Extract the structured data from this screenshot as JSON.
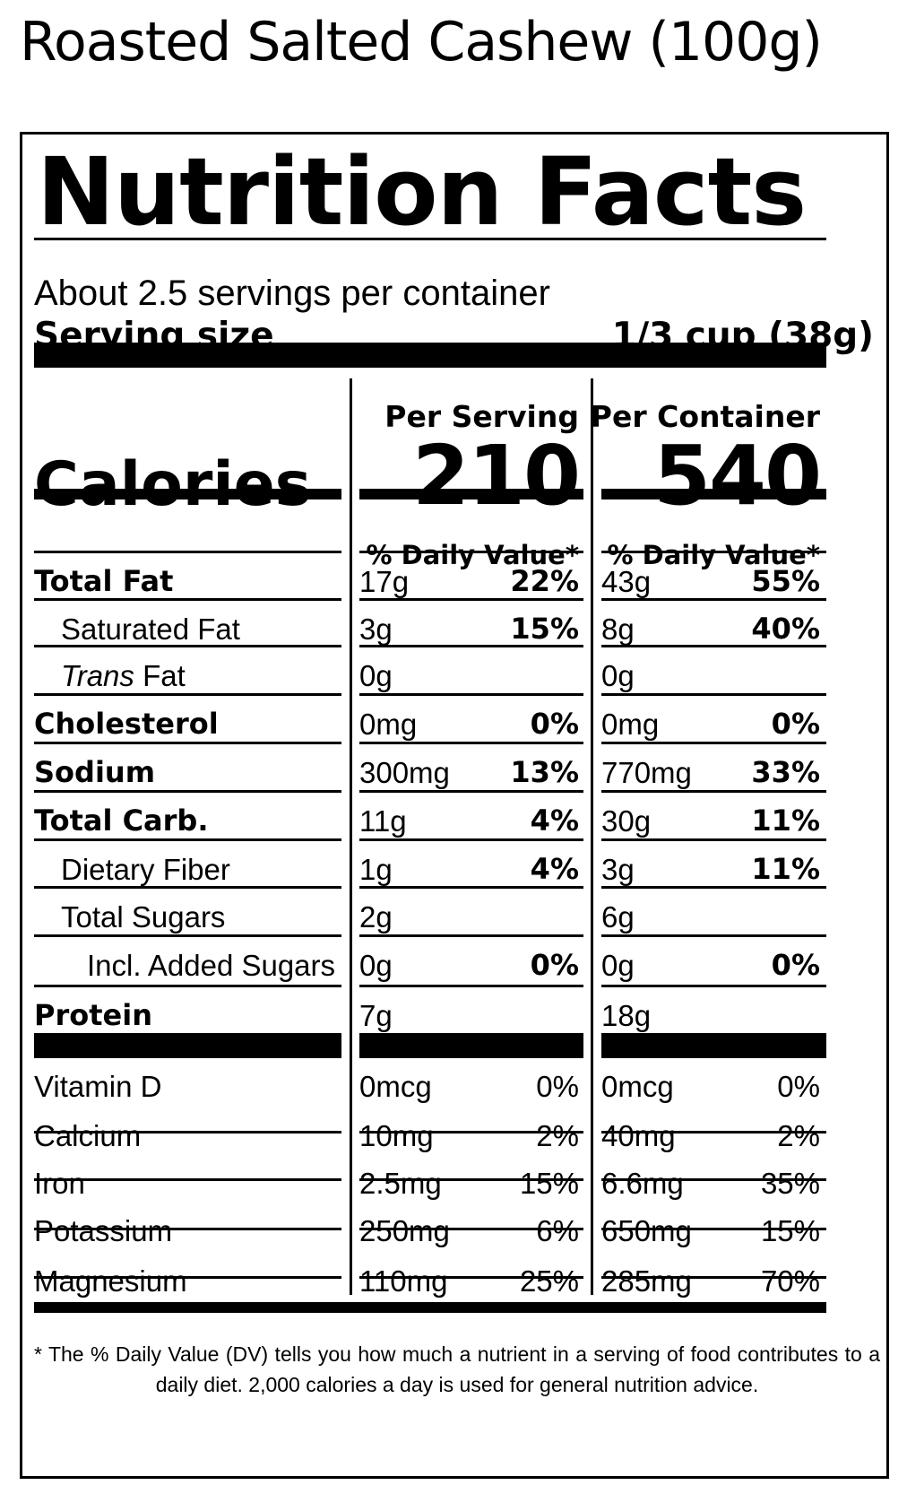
{
  "product_title": "Roasted Salted Cashew (100g)",
  "heading": "Nutrition Facts",
  "servings_per_container": "About 2.5 servings per container",
  "serving_size_label": "Serving size",
  "serving_size_value": "1/3 cup (38g)",
  "calories_label": "Calories",
  "columns": [
    {
      "header": "Per Serving",
      "calories": "210",
      "dv_header": "% Daily Value*"
    },
    {
      "header": "Per Container",
      "calories": "540",
      "dv_header": "% Daily Value*"
    }
  ],
  "nutrients": [
    {
      "name": "Total Fat",
      "style": "bold",
      "serving": {
        "amount": "17g",
        "dv": "22%"
      },
      "container": {
        "amount": "43g",
        "dv": "55%"
      }
    },
    {
      "name": "Saturated Fat",
      "style": "indent",
      "serving": {
        "amount": "3g",
        "dv": "15%"
      },
      "container": {
        "amount": "8g",
        "dv": "40%"
      }
    },
    {
      "name_italic": "Trans",
      "name": " Fat",
      "style": "indent-italic",
      "serving": {
        "amount": "0g",
        "dv": ""
      },
      "container": {
        "amount": "0g",
        "dv": ""
      }
    },
    {
      "name": "Cholesterol",
      "style": "bold",
      "serving": {
        "amount": "0mg",
        "dv": "0%"
      },
      "container": {
        "amount": "0mg",
        "dv": "0%"
      }
    },
    {
      "name": "Sodium",
      "style": "bold",
      "serving": {
        "amount": "300mg",
        "dv": "13%"
      },
      "container": {
        "amount": "770mg",
        "dv": "33%"
      }
    },
    {
      "name": "Total Carb.",
      "style": "bold",
      "serving": {
        "amount": "11g",
        "dv": "4%"
      },
      "container": {
        "amount": "30g",
        "dv": "11%"
      }
    },
    {
      "name": "Dietary Fiber",
      "style": "indent",
      "serving": {
        "amount": "1g",
        "dv": "4%"
      },
      "container": {
        "amount": "3g",
        "dv": "11%"
      }
    },
    {
      "name": "Total Sugars",
      "style": "indent",
      "serving": {
        "amount": "2g",
        "dv": ""
      },
      "container": {
        "amount": "6g",
        "dv": ""
      }
    },
    {
      "name": "Incl. Added Sugars",
      "style": "indent2",
      "serving": {
        "amount": "0g",
        "dv": "0%"
      },
      "container": {
        "amount": "0g",
        "dv": "0%"
      }
    },
    {
      "name": "Protein",
      "style": "bold",
      "serving": {
        "amount": "7g",
        "dv": ""
      },
      "container": {
        "amount": "18g",
        "dv": ""
      }
    }
  ],
  "vitamins": [
    {
      "name": "Vitamin D",
      "serving": {
        "amount": "0mcg",
        "dv": "0%"
      },
      "container": {
        "amount": "0mcg",
        "dv": "0%"
      }
    },
    {
      "name": "Calcium",
      "serving": {
        "amount": "10mg",
        "dv": "2%"
      },
      "container": {
        "amount": "40mg",
        "dv": "2%"
      }
    },
    {
      "name": "Iron",
      "serving": {
        "amount": "2.5mg",
        "dv": "15%"
      },
      "container": {
        "amount": "6.6mg",
        "dv": "35%"
      }
    },
    {
      "name": "Potassium",
      "serving": {
        "amount": "250mg",
        "dv": "6%"
      },
      "container": {
        "amount": "650mg",
        "dv": "15%"
      }
    },
    {
      "name": "Magnesium",
      "serving": {
        "amount": "110mg",
        "dv": "25%"
      },
      "container": {
        "amount": "285mg",
        "dv": "70%"
      }
    }
  ],
  "footnote": "* The % Daily Value (DV) tells you how much a nutrient in a serving of food contributes to a daily diet. 2,000 calories a day is used for general nutrition advice."
}
